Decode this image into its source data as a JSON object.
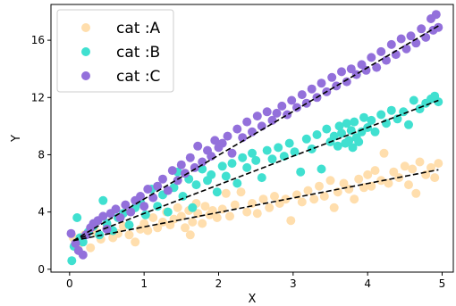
{
  "chart_data": {
    "type": "scatter",
    "title": "",
    "xlabel": "X",
    "ylabel": "Y",
    "xlim": [
      -0.25,
      5.15
    ],
    "ylim": [
      -0.2,
      18.5
    ],
    "xticks": [
      "0",
      "1",
      "2",
      "3",
      "4",
      "5"
    ],
    "yticks": [
      "0",
      "4",
      "8",
      "12",
      "16"
    ],
    "grid": false,
    "legend_position": "top-left",
    "series": [
      {
        "name": "cat :A",
        "color": "#ffdead",
        "trend": [
          [
            0.05,
            2.0
          ],
          [
            4.95,
            6.95
          ]
        ],
        "points": [
          [
            0.05,
            2.2
          ],
          [
            0.12,
            1.7
          ],
          [
            0.2,
            2.4
          ],
          [
            0.28,
            1.5
          ],
          [
            0.35,
            2.6
          ],
          [
            0.42,
            2.1
          ],
          [
            0.5,
            2.9
          ],
          [
            0.58,
            2.2
          ],
          [
            0.65,
            2.5
          ],
          [
            0.72,
            3.0
          ],
          [
            0.8,
            2.4
          ],
          [
            0.88,
            1.9
          ],
          [
            0.95,
            2.8
          ],
          [
            1.0,
            3.2
          ],
          [
            1.05,
            2.7
          ],
          [
            1.12,
            3.6
          ],
          [
            1.18,
            2.9
          ],
          [
            1.25,
            3.3
          ],
          [
            1.3,
            4.0
          ],
          [
            1.35,
            3.1
          ],
          [
            1.4,
            3.5
          ],
          [
            1.45,
            4.3
          ],
          [
            1.5,
            3.7
          ],
          [
            1.55,
            2.9
          ],
          [
            1.6,
            4.1
          ],
          [
            1.62,
            2.4
          ],
          [
            1.65,
            3.3
          ],
          [
            1.7,
            4.6
          ],
          [
            1.72,
            3.9
          ],
          [
            1.78,
            3.2
          ],
          [
            1.82,
            4.4
          ],
          [
            1.88,
            3.8
          ],
          [
            1.92,
            4.1
          ],
          [
            1.98,
            3.6
          ],
          [
            2.05,
            4.2
          ],
          [
            2.1,
            5.3
          ],
          [
            2.15,
            3.7
          ],
          [
            2.22,
            4.5
          ],
          [
            2.3,
            5.4
          ],
          [
            2.38,
            4.0
          ],
          [
            2.45,
            4.6
          ],
          [
            2.52,
            3.9
          ],
          [
            2.6,
            4.9
          ],
          [
            2.68,
            4.3
          ],
          [
            2.75,
            5.1
          ],
          [
            2.82,
            4.6
          ],
          [
            2.9,
            4.9
          ],
          [
            2.97,
            3.4
          ],
          [
            3.05,
            5.2
          ],
          [
            3.12,
            4.7
          ],
          [
            3.2,
            5.5
          ],
          [
            3.28,
            4.9
          ],
          [
            3.35,
            5.8
          ],
          [
            3.42,
            5.1
          ],
          [
            3.5,
            6.2
          ],
          [
            3.55,
            4.3
          ],
          [
            3.6,
            5.4
          ],
          [
            3.68,
            6.0
          ],
          [
            3.75,
            5.6
          ],
          [
            3.82,
            4.9
          ],
          [
            3.88,
            6.3
          ],
          [
            3.95,
            5.7
          ],
          [
            4.0,
            6.6
          ],
          [
            4.05,
            5.8
          ],
          [
            4.1,
            6.9
          ],
          [
            4.18,
            6.2
          ],
          [
            4.22,
            8.1
          ],
          [
            4.28,
            6.0
          ],
          [
            4.35,
            6.8
          ],
          [
            4.42,
            6.4
          ],
          [
            4.5,
            7.2
          ],
          [
            4.55,
            5.9
          ],
          [
            4.6,
            7.0
          ],
          [
            4.65,
            5.3
          ],
          [
            4.7,
            7.5
          ],
          [
            4.78,
            6.6
          ],
          [
            4.85,
            7.1
          ],
          [
            4.9,
            6.4
          ],
          [
            4.95,
            7.4
          ]
        ]
      },
      {
        "name": "cat :B",
        "color": "#40e0d0",
        "trend": [
          [
            0.05,
            2.0
          ],
          [
            4.95,
            11.8
          ]
        ],
        "points": [
          [
            0.03,
            0.6
          ],
          [
            0.06,
            1.6
          ],
          [
            0.1,
            3.6
          ],
          [
            0.14,
            2.2
          ],
          [
            0.18,
            1.9
          ],
          [
            0.25,
            2.6
          ],
          [
            0.32,
            3.0
          ],
          [
            0.4,
            2.4
          ],
          [
            0.45,
            4.8
          ],
          [
            0.5,
            3.2
          ],
          [
            0.58,
            2.7
          ],
          [
            0.65,
            3.6
          ],
          [
            0.72,
            3.9
          ],
          [
            0.8,
            3.1
          ],
          [
            0.88,
            4.3
          ],
          [
            0.95,
            4.7
          ],
          [
            1.02,
            3.8
          ],
          [
            1.1,
            5.6
          ],
          [
            1.18,
            4.4
          ],
          [
            1.25,
            5.2
          ],
          [
            1.32,
            4.0
          ],
          [
            1.4,
            5.7
          ],
          [
            1.45,
            6.8
          ],
          [
            1.52,
            5.1
          ],
          [
            1.6,
            6.3
          ],
          [
            1.65,
            4.3
          ],
          [
            1.7,
            5.9
          ],
          [
            1.78,
            7.0
          ],
          [
            1.85,
            6.2
          ],
          [
            1.9,
            6.6
          ],
          [
            1.98,
            5.4
          ],
          [
            2.05,
            7.2
          ],
          [
            2.1,
            6.5
          ],
          [
            2.18,
            7.4
          ],
          [
            2.25,
            6.0
          ],
          [
            2.32,
            7.8
          ],
          [
            2.38,
            7.1
          ],
          [
            2.45,
            8.1
          ],
          [
            2.5,
            7.6
          ],
          [
            2.58,
            6.4
          ],
          [
            2.65,
            8.3
          ],
          [
            2.72,
            7.7
          ],
          [
            2.8,
            8.5
          ],
          [
            2.88,
            7.9
          ],
          [
            2.95,
            8.8
          ],
          [
            3.02,
            8.2
          ],
          [
            3.1,
            6.8
          ],
          [
            3.18,
            9.1
          ],
          [
            3.25,
            8.4
          ],
          [
            3.32,
            9.4
          ],
          [
            3.38,
            7.0
          ],
          [
            3.45,
            9.8
          ],
          [
            3.5,
            8.9
          ],
          [
            3.55,
            9.3
          ],
          [
            3.6,
            8.6
          ],
          [
            3.62,
            10.0
          ],
          [
            3.65,
            9.5
          ],
          [
            3.7,
            8.8
          ],
          [
            3.72,
            10.2
          ],
          [
            3.75,
            9.0
          ],
          [
            3.78,
            9.7
          ],
          [
            3.8,
            8.5
          ],
          [
            3.82,
            10.3
          ],
          [
            3.85,
            9.2
          ],
          [
            3.88,
            8.9
          ],
          [
            3.92,
            9.6
          ],
          [
            3.95,
            10.6
          ],
          [
            4.0,
            9.9
          ],
          [
            4.05,
            10.4
          ],
          [
            4.1,
            9.6
          ],
          [
            4.18,
            10.8
          ],
          [
            4.25,
            10.2
          ],
          [
            4.32,
            11.1
          ],
          [
            4.4,
            10.5
          ],
          [
            4.48,
            11.0
          ],
          [
            4.55,
            10.1
          ],
          [
            4.62,
            11.8
          ],
          [
            4.7,
            11.2
          ],
          [
            4.78,
            11.6
          ],
          [
            4.85,
            11.9
          ],
          [
            4.9,
            12.1
          ],
          [
            4.95,
            11.7
          ]
        ]
      },
      {
        "name": "cat :C",
        "color": "#9370db",
        "trend": [
          [
            0.05,
            2.0
          ],
          [
            4.95,
            17.0
          ]
        ],
        "points": [
          [
            0.02,
            2.5
          ],
          [
            0.08,
            1.8
          ],
          [
            0.12,
            1.3
          ],
          [
            0.18,
            1.0
          ],
          [
            0.22,
            2.4
          ],
          [
            0.28,
            2.9
          ],
          [
            0.32,
            3.2
          ],
          [
            0.38,
            3.4
          ],
          [
            0.45,
            3.7
          ],
          [
            0.5,
            2.8
          ],
          [
            0.55,
            3.9
          ],
          [
            0.62,
            4.2
          ],
          [
            0.68,
            3.6
          ],
          [
            0.75,
            4.5
          ],
          [
            0.82,
            4.0
          ],
          [
            0.88,
            4.8
          ],
          [
            0.95,
            5.1
          ],
          [
            1.0,
            4.4
          ],
          [
            1.05,
            5.6
          ],
          [
            1.12,
            5.0
          ],
          [
            1.18,
            5.8
          ],
          [
            1.25,
            6.3
          ],
          [
            1.32,
            5.5
          ],
          [
            1.38,
            6.9
          ],
          [
            1.45,
            6.2
          ],
          [
            1.5,
            7.3
          ],
          [
            1.55,
            6.7
          ],
          [
            1.62,
            7.8
          ],
          [
            1.68,
            7.1
          ],
          [
            1.72,
            8.6
          ],
          [
            1.78,
            7.5
          ],
          [
            1.85,
            8.3
          ],
          [
            1.9,
            7.9
          ],
          [
            1.95,
            9.0
          ],
          [
            2.0,
            8.5
          ],
          [
            2.05,
            8.8
          ],
          [
            2.12,
            9.3
          ],
          [
            2.18,
            8.1
          ],
          [
            2.25,
            9.8
          ],
          [
            2.32,
            9.2
          ],
          [
            2.38,
            10.3
          ],
          [
            2.45,
            9.6
          ],
          [
            2.52,
            10.7
          ],
          [
            2.58,
            10.0
          ],
          [
            2.65,
            11.0
          ],
          [
            2.72,
            10.4
          ],
          [
            2.78,
            10.9
          ],
          [
            2.85,
            11.4
          ],
          [
            2.92,
            10.8
          ],
          [
            2.98,
            11.8
          ],
          [
            3.05,
            11.3
          ],
          [
            3.12,
            12.2
          ],
          [
            3.18,
            11.6
          ],
          [
            3.25,
            12.6
          ],
          [
            3.32,
            12.0
          ],
          [
            3.38,
            13.0
          ],
          [
            3.45,
            12.4
          ],
          [
            3.52,
            13.4
          ],
          [
            3.58,
            12.8
          ],
          [
            3.65,
            13.8
          ],
          [
            3.72,
            13.1
          ],
          [
            3.78,
            14.0
          ],
          [
            3.85,
            13.6
          ],
          [
            3.92,
            14.3
          ],
          [
            3.98,
            13.9
          ],
          [
            4.05,
            14.8
          ],
          [
            4.12,
            14.1
          ],
          [
            4.18,
            15.2
          ],
          [
            4.25,
            14.6
          ],
          [
            4.32,
            15.7
          ],
          [
            4.38,
            15.0
          ],
          [
            4.45,
            16.1
          ],
          [
            4.52,
            15.4
          ],
          [
            4.58,
            16.3
          ],
          [
            4.65,
            15.8
          ],
          [
            4.72,
            16.8
          ],
          [
            4.78,
            16.2
          ],
          [
            4.85,
            17.5
          ],
          [
            4.88,
            16.7
          ],
          [
            4.92,
            17.8
          ],
          [
            4.95,
            16.9
          ]
        ]
      }
    ]
  }
}
